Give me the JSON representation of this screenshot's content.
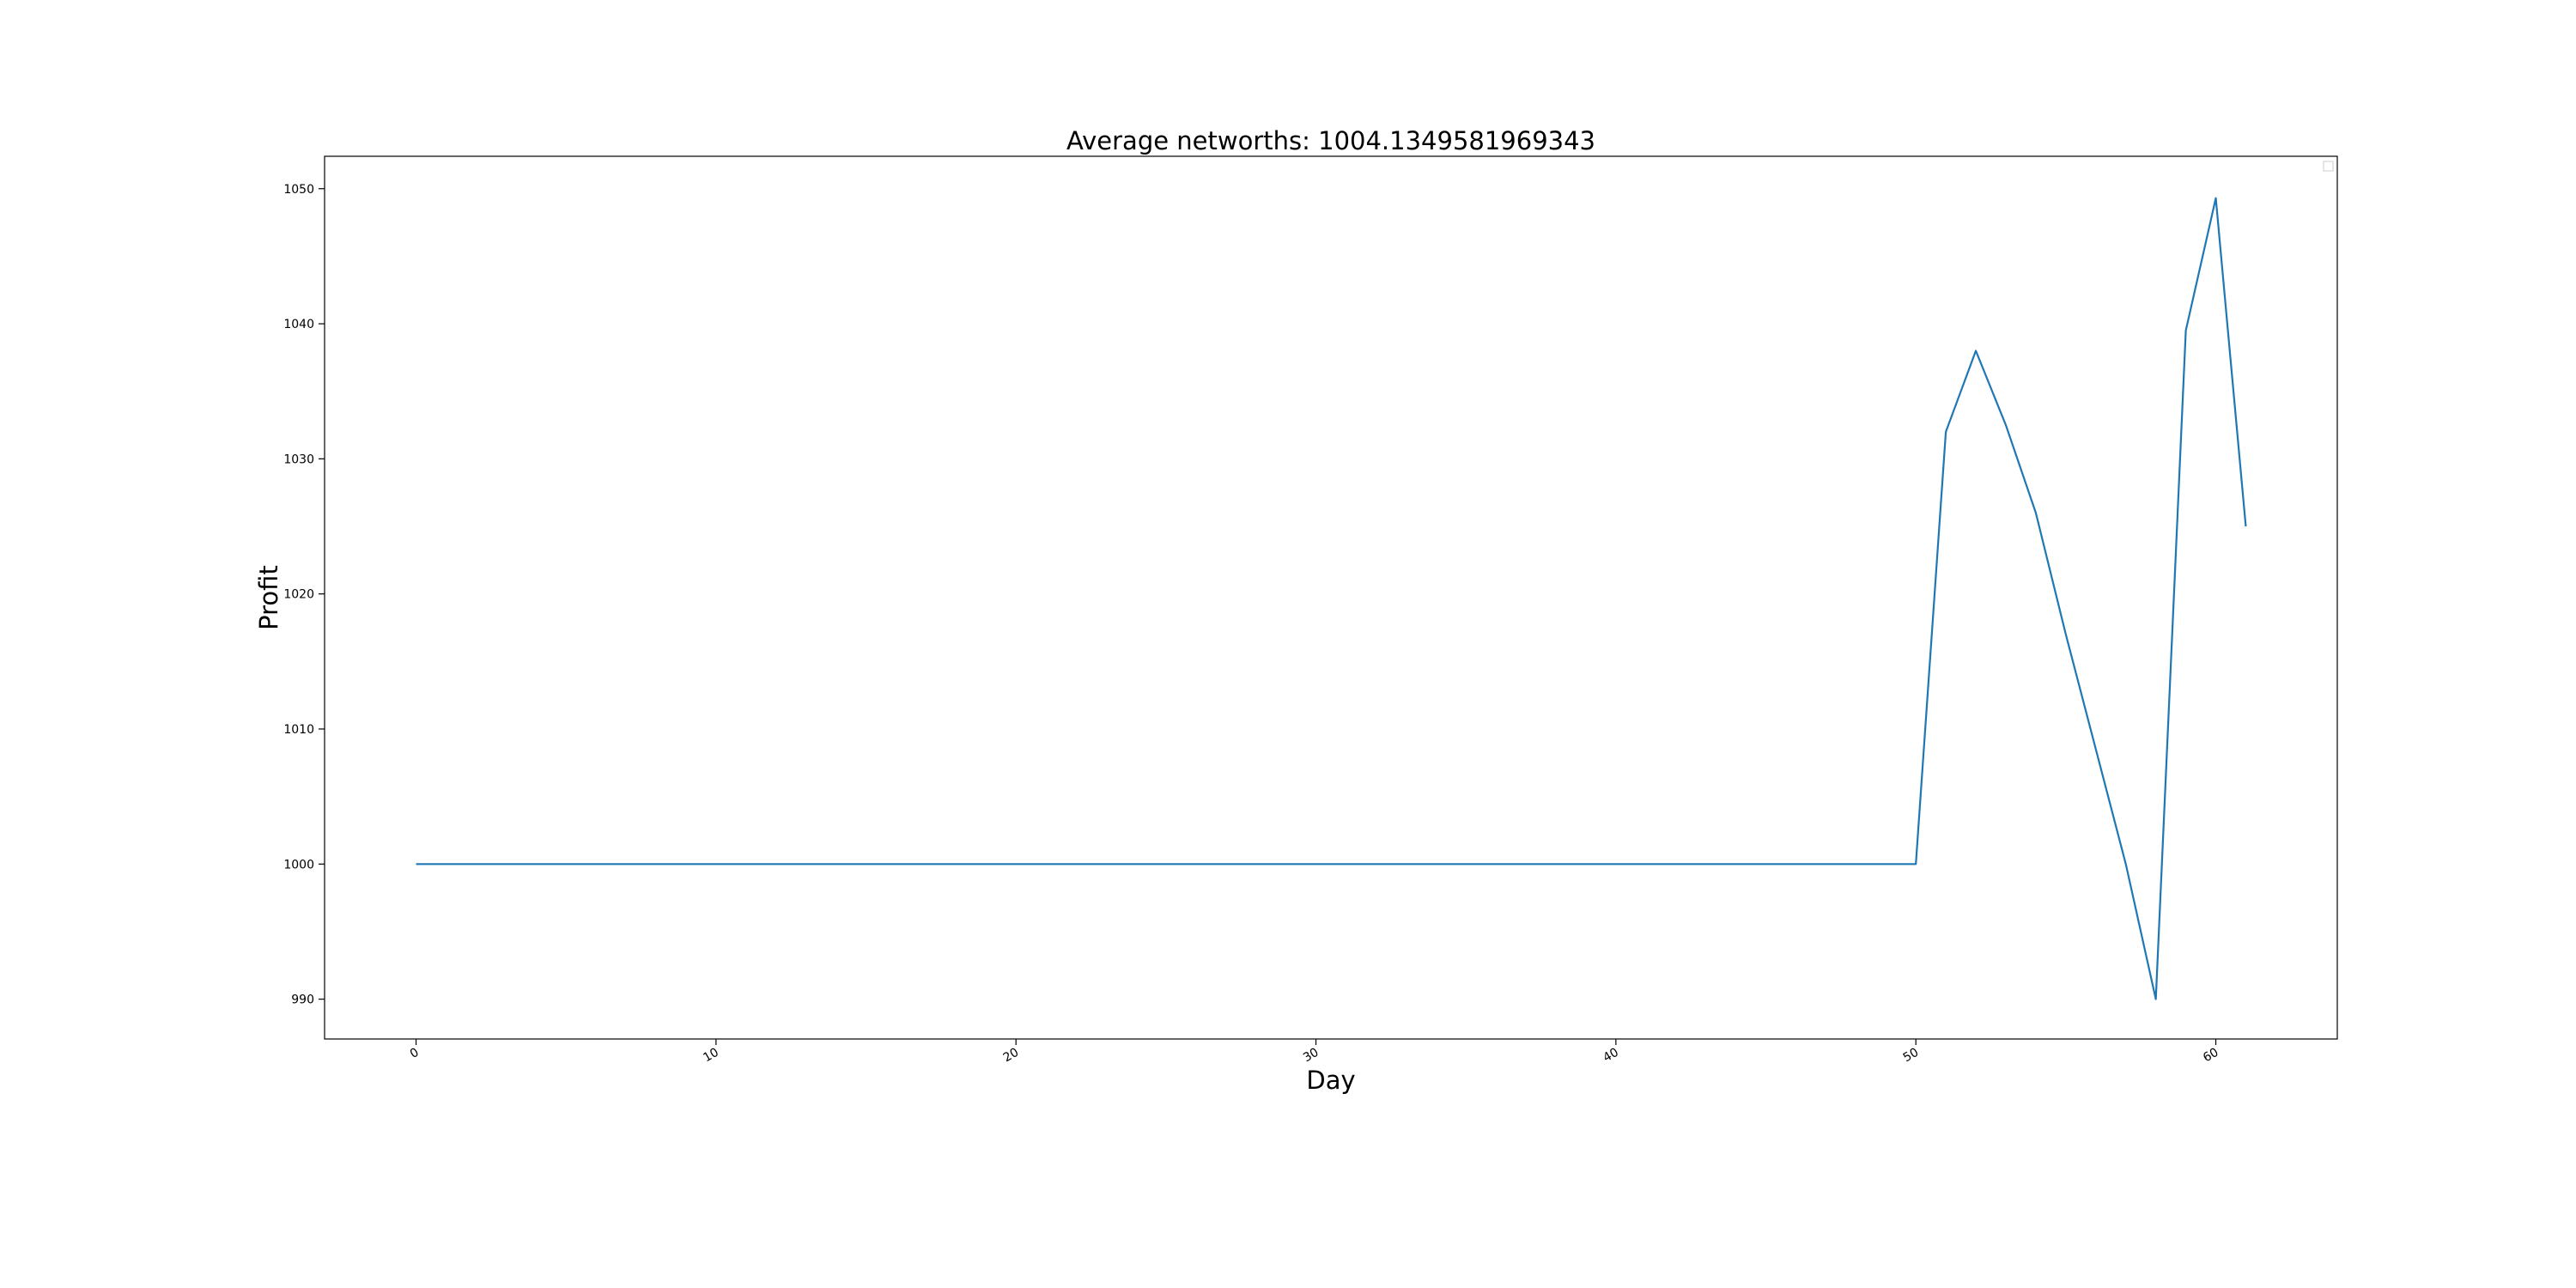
{
  "chart_data": {
    "type": "line",
    "title": "Average networths: 1004.1349581969343",
    "xlabel": "Day",
    "ylabel": "Profit",
    "xlim": [
      -3.05,
      64.05
    ],
    "ylim": [
      987.05,
      1052.4
    ],
    "xticks": [
      0,
      10,
      20,
      30,
      40,
      50,
      60
    ],
    "xtick_labels": [
      "0",
      "10",
      "20",
      "30",
      "40",
      "50",
      "60"
    ],
    "yticks": [
      990,
      1000,
      1010,
      1020,
      1030,
      1040,
      1050
    ],
    "ytick_labels": [
      "990",
      "1000",
      "1010",
      "1020",
      "1030",
      "1040",
      "1050"
    ],
    "grid": false,
    "legend_position": "top-right",
    "series": [
      {
        "color": "#1f77b4",
        "x": [
          0,
          1,
          2,
          3,
          4,
          5,
          6,
          7,
          8,
          9,
          10,
          11,
          12,
          13,
          14,
          15,
          16,
          17,
          18,
          19,
          20,
          21,
          22,
          23,
          24,
          25,
          26,
          27,
          28,
          29,
          30,
          31,
          32,
          33,
          34,
          35,
          36,
          37,
          38,
          39,
          40,
          41,
          42,
          43,
          44,
          45,
          46,
          47,
          48,
          49,
          50,
          51,
          52,
          53,
          54,
          55,
          56,
          57,
          58,
          59,
          60,
          61
        ],
        "values": [
          1000,
          1000,
          1000,
          1000,
          1000,
          1000,
          1000,
          1000,
          1000,
          1000,
          1000,
          1000,
          1000,
          1000,
          1000,
          1000,
          1000,
          1000,
          1000,
          1000,
          1000,
          1000,
          1000,
          1000,
          1000,
          1000,
          1000,
          1000,
          1000,
          1000,
          1000,
          1000,
          1000,
          1000,
          1000,
          1000,
          1000,
          1000,
          1000,
          1000,
          1000,
          1000,
          1000,
          1000,
          1000,
          1000,
          1000,
          1000,
          1000,
          1000,
          1000,
          1032,
          1038,
          1032.5,
          1026,
          1017,
          1008.5,
          1000,
          990,
          1039.5,
          1049.3,
          1025
        ]
      }
    ]
  }
}
